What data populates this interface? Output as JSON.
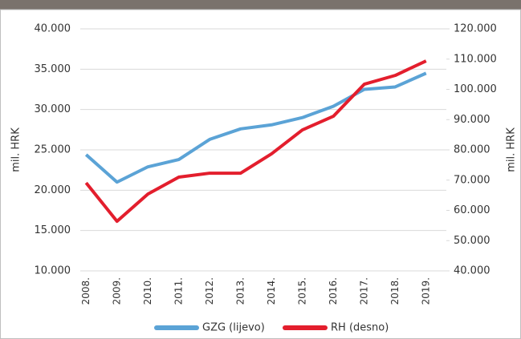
{
  "chart_data": {
    "type": "line",
    "categories": [
      "2008.",
      "2009.",
      "2010.",
      "2011.",
      "2012.",
      "2013.",
      "2014.",
      "2015.",
      "2016.",
      "2017.",
      "2018.",
      "2019."
    ],
    "ylabel": "mil. HRK",
    "y2label": "mil. HRK",
    "ylim": [
      10000,
      40000
    ],
    "yticks": [
      {
        "value": 10000,
        "label": "10.000"
      },
      {
        "value": 15000,
        "label": "15.000"
      },
      {
        "value": 20000,
        "label": "20.000"
      },
      {
        "value": 25000,
        "label": "25.000"
      },
      {
        "value": 30000,
        "label": "30.000"
      },
      {
        "value": 35000,
        "label": "35.000"
      },
      {
        "value": 40000,
        "label": "40.000"
      }
    ],
    "y2lim": [
      40000,
      120000
    ],
    "y2ticks": [
      {
        "value": 40000,
        "label": "40.000"
      },
      {
        "value": 50000,
        "label": "50.000"
      },
      {
        "value": 60000,
        "label": "60.000"
      },
      {
        "value": 70000,
        "label": "70.000"
      },
      {
        "value": 80000,
        "label": "80.000"
      },
      {
        "value": 90000,
        "label": "90.000"
      },
      {
        "value": 100000,
        "label": "100.000"
      },
      {
        "value": 110000,
        "label": "110.000"
      },
      {
        "value": 120000,
        "label": "120.000"
      }
    ],
    "grid": true,
    "series": [
      {
        "name": "GZG (lijevo)",
        "color": "#5ba3d6",
        "values": [
          24400,
          21000,
          22900,
          23800,
          26300,
          27600,
          28100,
          29000,
          30400,
          32500,
          32800,
          34500
        ]
      },
      {
        "name": "RH (desno)",
        "color": "#e31e2d",
        "axis": "y2",
        "values": [
          69100,
          56400,
          65400,
          71000,
          72300,
          72300,
          78700,
          86600,
          91100,
          101700,
          104600,
          109400
        ]
      }
    ]
  }
}
